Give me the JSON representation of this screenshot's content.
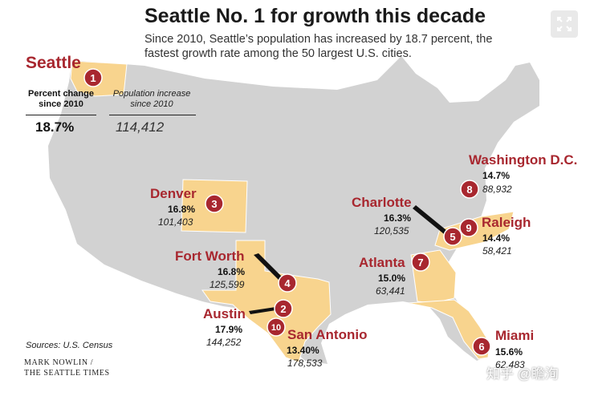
{
  "title": "Seattle No. 1 for growth this decade",
  "subtitle": "Since 2010, Seattle’s population has increased by 18.7 per­cent, the fastest growth rate among the 50 largest U.S. cities.",
  "column_headers": {
    "percent": [
      "Percent change",
      "since 2010"
    ],
    "population": [
      "Population increase",
      "since 2010"
    ]
  },
  "cities": [
    {
      "rank": "1",
      "name": "Seattle",
      "pct": "18.7%",
      "pop": "114,412"
    },
    {
      "rank": "2",
      "name": "Austin",
      "pct": "17.9%",
      "pop": "144,252"
    },
    {
      "rank": "3",
      "name": "Denver",
      "pct": "16.8%",
      "pop": "101,403"
    },
    {
      "rank": "4",
      "name": "Fort Worth",
      "pct": "16.8%",
      "pop": "125,599"
    },
    {
      "rank": "5",
      "name": "Charlotte",
      "pct": "16.3%",
      "pop": "120,535"
    },
    {
      "rank": "6",
      "name": "Miami",
      "pct": "15.6%",
      "pop": "62,483"
    },
    {
      "rank": "7",
      "name": "Atlanta",
      "pct": "15.0%",
      "pop": "63,441"
    },
    {
      "rank": "8",
      "name": "Washington D.C.",
      "pct": "14.7%",
      "pop": "88,932"
    },
    {
      "rank": "9",
      "name": "Raleigh",
      "pct": "14.4%",
      "pop": "58,421"
    },
    {
      "rank": "10",
      "name": "San Antonio",
      "pct": "13.40%",
      "pop": "178,533"
    }
  ],
  "source": "Sources: U.S. Census",
  "credit": [
    "MARK NOWLIN /",
    "THE SEATTLE TIMES"
  ],
  "watermark": "知乎 @瞻洵",
  "colors": {
    "land": "#d2d2d2",
    "highlight_state": "#f8d48e",
    "accent": "#a8272f",
    "leader": "#111111"
  },
  "icons": {
    "expand": "expand-icon"
  }
}
